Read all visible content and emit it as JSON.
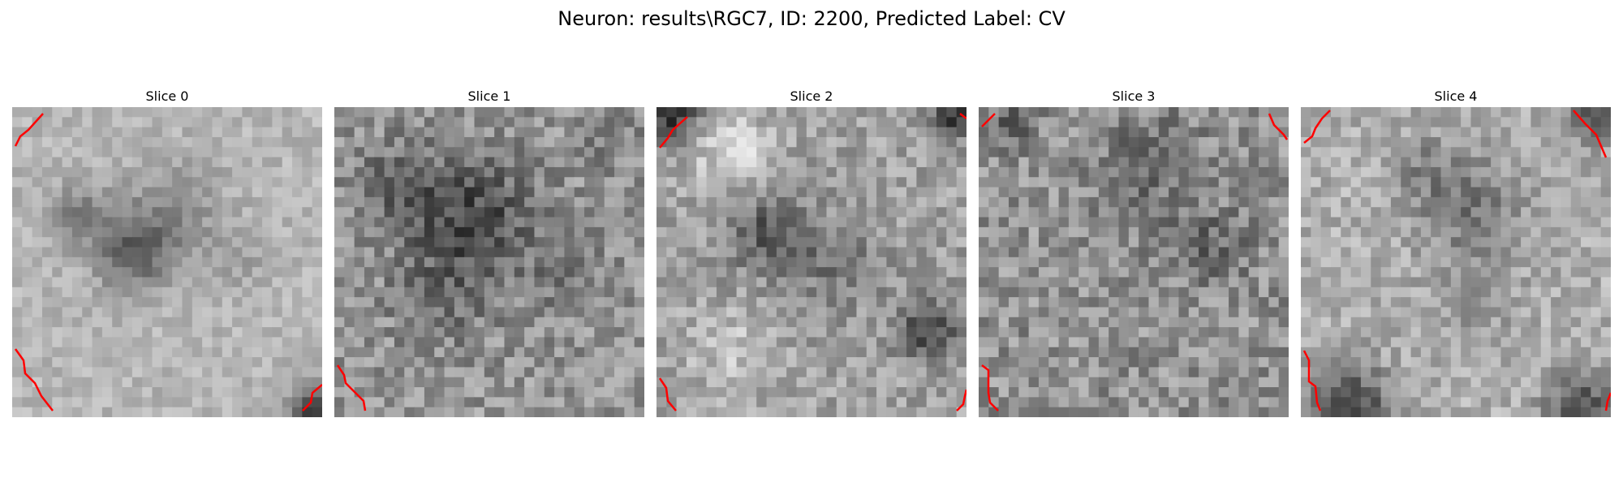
{
  "figure": {
    "title": "Neuron: results\\RGC7, ID: 2200, Predicted Label: CV"
  },
  "panels": [
    {
      "title": "Slice 0",
      "seed": 11,
      "base": 182,
      "noise": 22,
      "blobs": [
        [
          0.4,
          0.47,
          0.09,
          -85
        ],
        [
          0.22,
          0.35,
          0.07,
          -55
        ],
        [
          0.52,
          0.3,
          0.1,
          -40
        ],
        [
          0.7,
          0.48,
          0.08,
          -25
        ],
        [
          0.96,
          0.98,
          0.05,
          -120
        ]
      ]
    },
    {
      "title": "Slice 1",
      "seed": 23,
      "base": 150,
      "noise": 40,
      "blobs": [
        [
          0.45,
          0.35,
          0.14,
          -75
        ],
        [
          0.2,
          0.25,
          0.1,
          -40
        ],
        [
          0.35,
          0.6,
          0.12,
          -35
        ],
        [
          0.75,
          0.55,
          0.1,
          -25
        ],
        [
          0.9,
          0.12,
          0.08,
          -20
        ]
      ]
    },
    {
      "title": "Slice 2",
      "seed": 37,
      "base": 160,
      "noise": 35,
      "blobs": [
        [
          0.25,
          0.15,
          0.1,
          50
        ],
        [
          0.35,
          0.4,
          0.09,
          -70
        ],
        [
          0.58,
          0.5,
          0.1,
          -45
        ],
        [
          0.88,
          0.72,
          0.07,
          -95
        ],
        [
          0.25,
          0.8,
          0.1,
          35
        ],
        [
          0.05,
          0.02,
          0.06,
          -110
        ],
        [
          0.95,
          0.02,
          0.05,
          -110
        ]
      ]
    },
    {
      "title": "Slice 3",
      "seed": 41,
      "base": 145,
      "noise": 42,
      "blobs": [
        [
          0.55,
          0.2,
          0.12,
          -35
        ],
        [
          0.75,
          0.45,
          0.08,
          -45
        ],
        [
          0.1,
          0.05,
          0.05,
          -60
        ]
      ]
    },
    {
      "title": "Slice 4",
      "seed": 53,
      "base": 175,
      "noise": 32,
      "blobs": [
        [
          0.55,
          0.33,
          0.12,
          -55
        ],
        [
          0.4,
          0.2,
          0.08,
          -35
        ],
        [
          0.15,
          0.98,
          0.1,
          -110
        ],
        [
          0.9,
          0.98,
          0.08,
          -100
        ],
        [
          0.95,
          0.02,
          0.06,
          -100
        ],
        [
          0.55,
          0.65,
          0.1,
          -25
        ]
      ]
    }
  ],
  "overlay": {
    "line_color": "#ff0000"
  }
}
